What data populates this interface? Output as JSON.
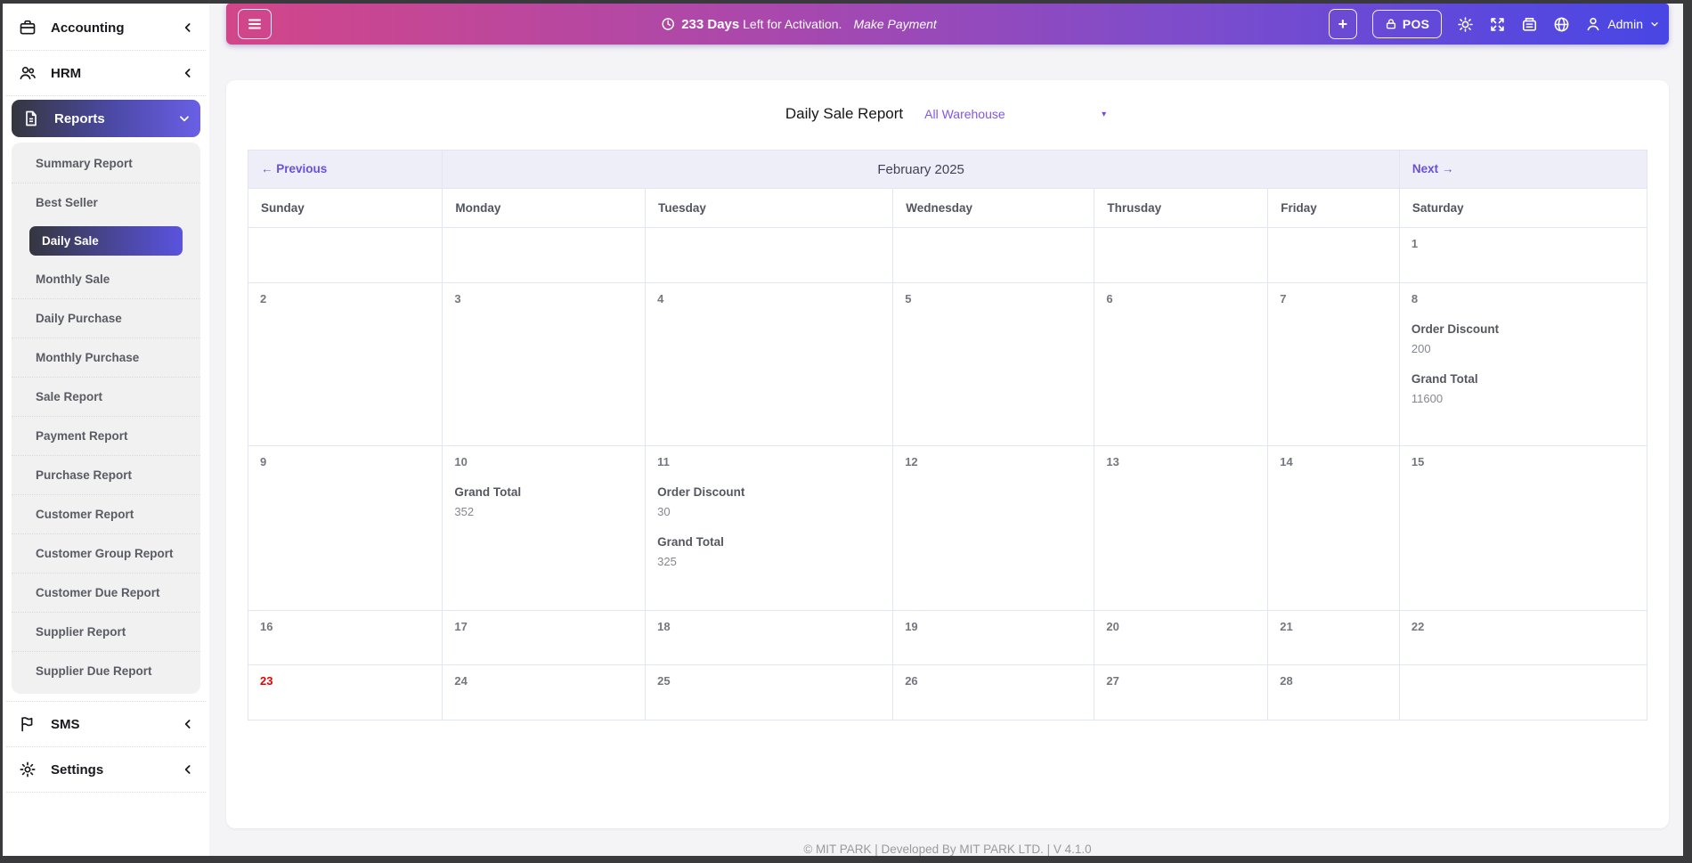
{
  "colors": {
    "topbar_gradient_start": "#d24689",
    "topbar_gradient_end": "#4846e5",
    "sidebar_active_gradient_start": "#35363f",
    "sidebar_active_gradient_end": "#6a5fe6",
    "accent_purple": "#6b4fd8",
    "warehouse_link_purple": "#8257e5",
    "today_red": "#e60000"
  },
  "topbar": {
    "menu_icon": "hamburger-icon",
    "activation": {
      "clock_icon": "clock-icon",
      "days_bold": "233 Days",
      "text": "Left for Activation.",
      "make_payment": "Make Payment"
    },
    "plus_label": "+",
    "pos_label": "POS",
    "action_icons": [
      "sun-icon",
      "fullscreen-icon",
      "cash-drawer-icon",
      "globe-icon"
    ],
    "admin_label": "Admin"
  },
  "sidebar": {
    "items": [
      {
        "label": "Accounting",
        "icon": "briefcase-icon",
        "chevron": "left",
        "active": false
      },
      {
        "label": "HRM",
        "icon": "users-icon",
        "chevron": "left",
        "active": false
      },
      {
        "label": "Reports",
        "icon": "report-file-icon",
        "chevron": "down",
        "active": true
      },
      {
        "label": "SMS",
        "icon": "flag-icon",
        "chevron": "left",
        "active": false
      },
      {
        "label": "Settings",
        "icon": "gear-icon",
        "chevron": "left",
        "active": false
      }
    ],
    "reports_submenu": {
      "active": "Daily Sale",
      "items": [
        "Summary Report",
        "Best Seller",
        "Daily Sale",
        "Monthly Sale",
        "Daily Purchase",
        "Monthly Purchase",
        "Sale Report",
        "Payment Report",
        "Purchase Report",
        "Customer Report",
        "Customer Group Report",
        "Customer Due Report",
        "Supplier Report",
        "Supplier Due Report"
      ]
    }
  },
  "report_header": {
    "title": "Daily Sale Report",
    "warehouse_selected": "All Warehouse"
  },
  "calendar": {
    "previous_label": "Previous",
    "month_title": "February 2025",
    "next_label": "Next",
    "day_headers": [
      "Sunday",
      "Monday",
      "Tuesday",
      "Wednesday",
      "Thrusday",
      "Friday",
      "Saturday"
    ],
    "weeks": [
      [
        {
          "day": ""
        },
        {
          "day": ""
        },
        {
          "day": ""
        },
        {
          "day": ""
        },
        {
          "day": ""
        },
        {
          "day": ""
        },
        {
          "day": "1"
        }
      ],
      [
        {
          "day": "2"
        },
        {
          "day": "3"
        },
        {
          "day": "4"
        },
        {
          "day": "5"
        },
        {
          "day": "6"
        },
        {
          "day": "7"
        },
        {
          "day": "8",
          "entries": [
            {
              "label": "Order Discount",
              "value": "200"
            },
            {
              "label": "Grand Total",
              "value": "11600"
            }
          ]
        }
      ],
      [
        {
          "day": "9"
        },
        {
          "day": "10",
          "entries": [
            {
              "label": "Grand Total",
              "value": "352"
            }
          ]
        },
        {
          "day": "11",
          "entries": [
            {
              "label": "Order Discount",
              "value": "30"
            },
            {
              "label": "Grand Total",
              "value": "325"
            }
          ]
        },
        {
          "day": "12"
        },
        {
          "day": "13"
        },
        {
          "day": "14"
        },
        {
          "day": "15"
        }
      ],
      [
        {
          "day": "16"
        },
        {
          "day": "17"
        },
        {
          "day": "18"
        },
        {
          "day": "19"
        },
        {
          "day": "20"
        },
        {
          "day": "21"
        },
        {
          "day": "22"
        }
      ],
      [
        {
          "day": "23",
          "today": true
        },
        {
          "day": "24"
        },
        {
          "day": "25"
        },
        {
          "day": "26"
        },
        {
          "day": "27"
        },
        {
          "day": "28"
        },
        {
          "day": "",
          "trailing_empty": true
        }
      ]
    ]
  },
  "footer": {
    "text": "© MIT PARK | Developed By MIT PARK LTD. | V 4.1.0"
  }
}
